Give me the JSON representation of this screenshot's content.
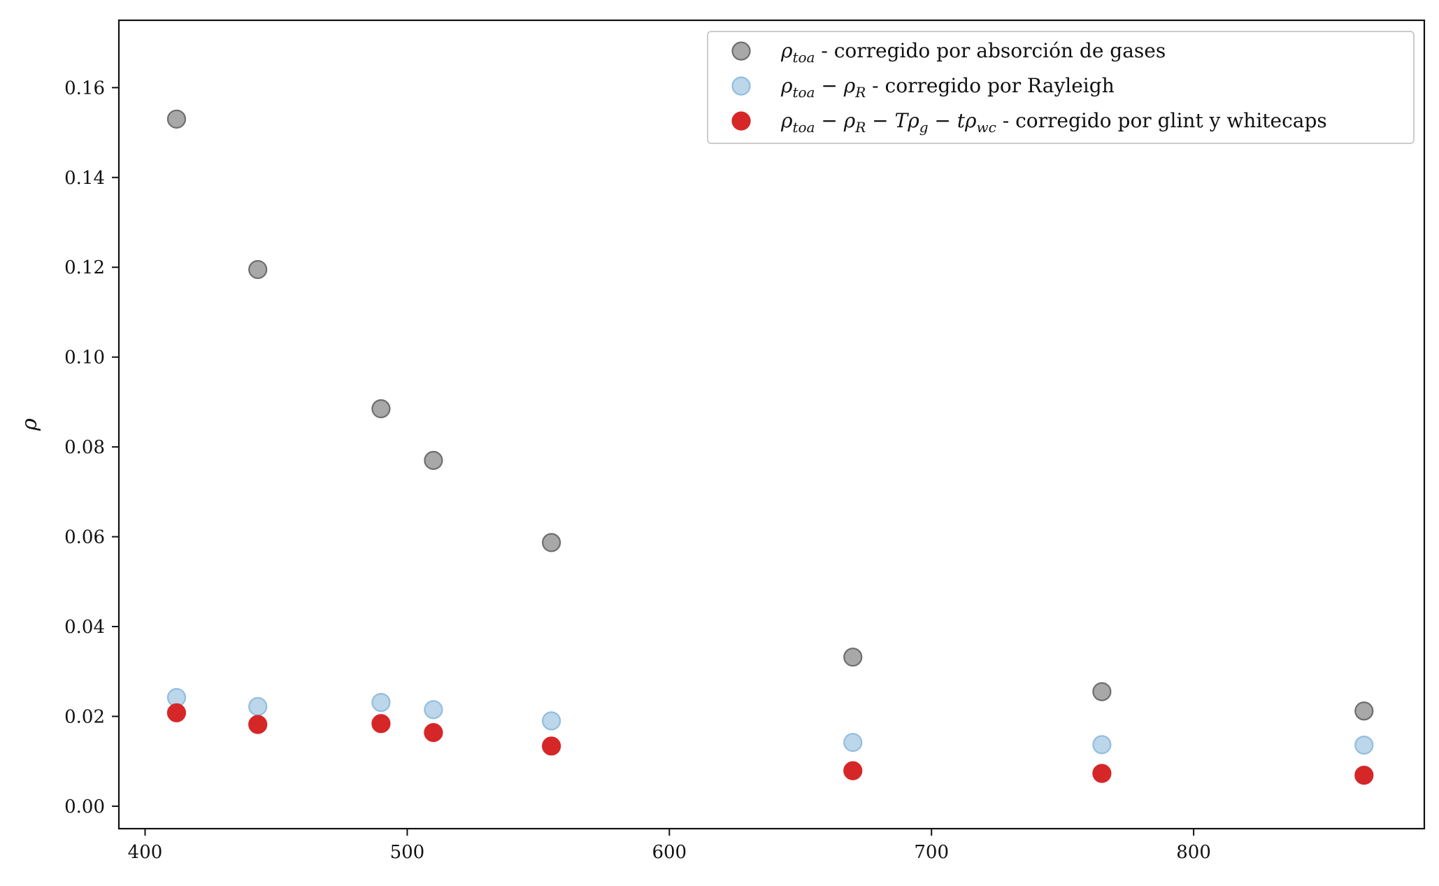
{
  "chart_data": {
    "type": "scatter",
    "title": "",
    "xlabel": "",
    "ylabel": "ρ",
    "xlim": [
      390,
      888
    ],
    "ylim": [
      -0.005,
      0.175
    ],
    "x_ticks": [
      400,
      500,
      600,
      700,
      800
    ],
    "y_ticks": [
      0.0,
      0.02,
      0.04,
      0.06,
      0.08,
      0.1,
      0.12,
      0.14,
      0.16
    ],
    "x_tick_labels": [
      "400",
      "500",
      "600",
      "700",
      "800"
    ],
    "y_tick_labels": [
      "0.00",
      "0.02",
      "0.04",
      "0.06",
      "0.08",
      "0.10",
      "0.12",
      "0.14",
      "0.16"
    ],
    "grid": false,
    "legend_position": "top-right",
    "x": [
      412,
      443,
      490,
      510,
      555,
      670,
      765,
      865
    ],
    "series": [
      {
        "name": "ρtoa - corregido por absorción de gases",
        "legend_parts": [
          {
            "t": "ρ",
            "math": true
          },
          {
            "t": "toa",
            "math": true,
            "sub": true
          },
          {
            "t": " - corregido por absorción de gases"
          }
        ],
        "color": "#a8a8a8",
        "edge_color": "#6e6e6e",
        "values": [
          0.153,
          0.1195,
          0.0885,
          0.077,
          0.0587,
          0.0332,
          0.0255,
          0.0212
        ]
      },
      {
        "name": "ρtoa − ρR - corregido por Rayleigh",
        "legend_parts": [
          {
            "t": "ρ",
            "math": true
          },
          {
            "t": "toa",
            "math": true,
            "sub": true
          },
          {
            "t": " − ",
            "math": true
          },
          {
            "t": "ρ",
            "math": true
          },
          {
            "t": "R",
            "math": true,
            "sub": true
          },
          {
            "t": " - corregido por Rayleigh"
          }
        ],
        "color": "#bcd6ea",
        "edge_color": "#93bde0",
        "values": [
          0.0242,
          0.0222,
          0.0231,
          0.0215,
          0.019,
          0.0142,
          0.0137,
          0.0136
        ]
      },
      {
        "name": "ρtoa − ρR − Tρg − tρwc - corregido por glint y whitecaps",
        "legend_parts": [
          {
            "t": "ρ",
            "math": true
          },
          {
            "t": "toa",
            "math": true,
            "sub": true
          },
          {
            "t": " − ",
            "math": true
          },
          {
            "t": "ρ",
            "math": true
          },
          {
            "t": "R",
            "math": true,
            "sub": true
          },
          {
            "t": " − ",
            "math": true
          },
          {
            "t": "Tρ",
            "math": true
          },
          {
            "t": "g",
            "math": true,
            "sub": true
          },
          {
            "t": " − ",
            "math": true
          },
          {
            "t": "tρ",
            "math": true
          },
          {
            "t": "wc",
            "math": true,
            "sub": true
          },
          {
            "t": " - corregido por glint y whitecaps"
          }
        ],
        "color": "#d62728",
        "edge_color": "#d62728",
        "values": [
          0.0208,
          0.0182,
          0.0184,
          0.0164,
          0.0134,
          0.0079,
          0.0073,
          0.0069
        ]
      }
    ]
  }
}
